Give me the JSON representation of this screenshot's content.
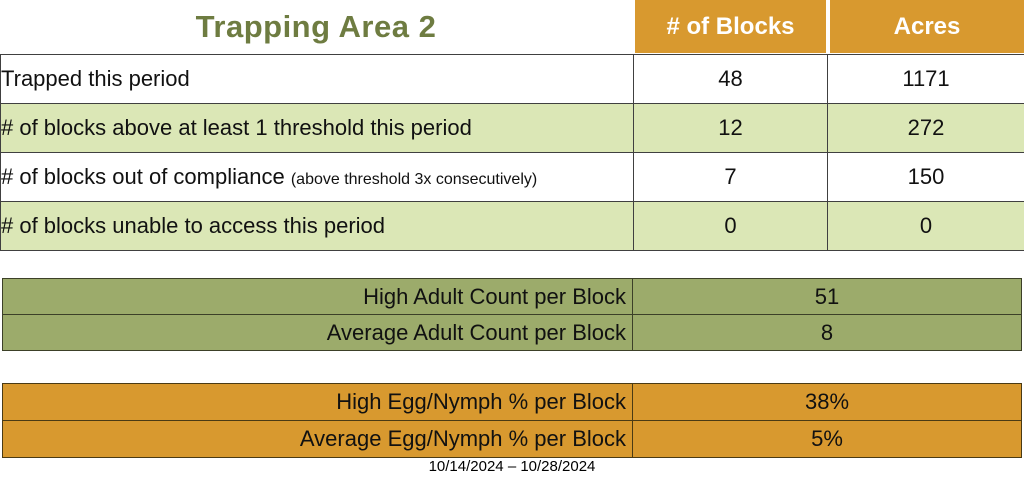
{
  "title": "Trapping Area 2",
  "columns": {
    "blocks": "# of Blocks",
    "acres": "Acres"
  },
  "rows": [
    {
      "label": "Trapped this period",
      "note": "",
      "blocks": "48",
      "acres": "1171"
    },
    {
      "label": "# of blocks above at least 1 threshold this period",
      "note": "",
      "blocks": "12",
      "acres": "272"
    },
    {
      "label": "# of blocks out of compliance",
      "note": "(above threshold 3x consecutively)",
      "blocks": "7",
      "acres": "150"
    },
    {
      "label": "# of blocks unable to access this period",
      "note": "",
      "blocks": "0",
      "acres": "0"
    }
  ],
  "adult_summary": [
    {
      "label": "High Adult Count per Block",
      "value": "51"
    },
    {
      "label": "Average Adult Count per Block",
      "value": "8"
    }
  ],
  "egg_summary": [
    {
      "label": "High Egg/Nymph % per Block",
      "value": "38%"
    },
    {
      "label": "Average Egg/Nymph % per Block",
      "value": "5%"
    }
  ],
  "date_range": "10/14/2024 – 10/28/2024",
  "colors": {
    "header_orange": "#D8992F",
    "row_light_green": "#DBE7B6",
    "summary_olive": "#9CAB6B",
    "title_green": "#6E7C41",
    "table_border": "#404040"
  }
}
